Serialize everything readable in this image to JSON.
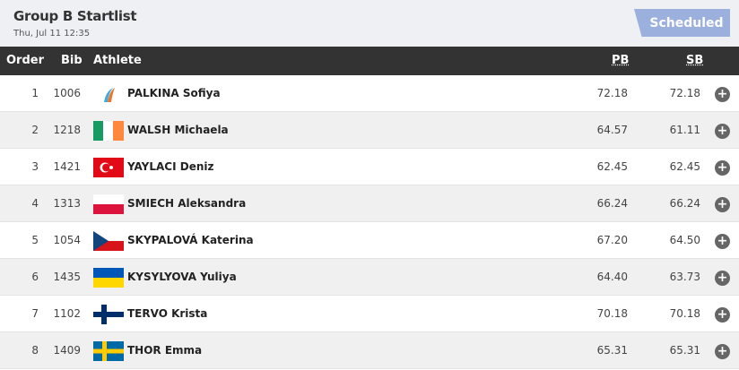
{
  "header": {
    "title": "Group B Startlist",
    "datetime": "Thu, Jul 11 12:35",
    "status": "Scheduled"
  },
  "columns": {
    "order": "Order",
    "bib": "Bib",
    "athlete": "Athlete",
    "pb": "PB",
    "sb": "SB"
  },
  "rows": [
    {
      "order": "1",
      "bib": "1006",
      "flag": "neutral-athlete-logo",
      "name": "PALKINA Sofiya",
      "pb": "72.18",
      "sb": "72.18"
    },
    {
      "order": "2",
      "bib": "1218",
      "flag": "ireland",
      "name": "WALSH Michaela",
      "pb": "64.57",
      "sb": "61.11"
    },
    {
      "order": "3",
      "bib": "1421",
      "flag": "turkey",
      "name": "YAYLACI Deniz",
      "pb": "62.45",
      "sb": "62.45"
    },
    {
      "order": "4",
      "bib": "1313",
      "flag": "poland",
      "name": "SMIECH Aleksandra",
      "pb": "66.24",
      "sb": "66.24"
    },
    {
      "order": "5",
      "bib": "1054",
      "flag": "czech-republic",
      "name": "SKYPALOVÁ Katerina",
      "pb": "67.20",
      "sb": "64.50"
    },
    {
      "order": "6",
      "bib": "1435",
      "flag": "ukraine",
      "name": "KYSYLYOVA Yuliya",
      "pb": "64.40",
      "sb": "63.73"
    },
    {
      "order": "7",
      "bib": "1102",
      "flag": "finland",
      "name": "TERVO Krista",
      "pb": "70.18",
      "sb": "70.18"
    },
    {
      "order": "8",
      "bib": "1409",
      "flag": "sweden",
      "name": "THOR Emma",
      "pb": "65.31",
      "sb": "65.31"
    }
  ],
  "colors": {
    "header_bg": "#eef0f3",
    "table_head": "#333333",
    "badge": "#9bb0dd"
  }
}
